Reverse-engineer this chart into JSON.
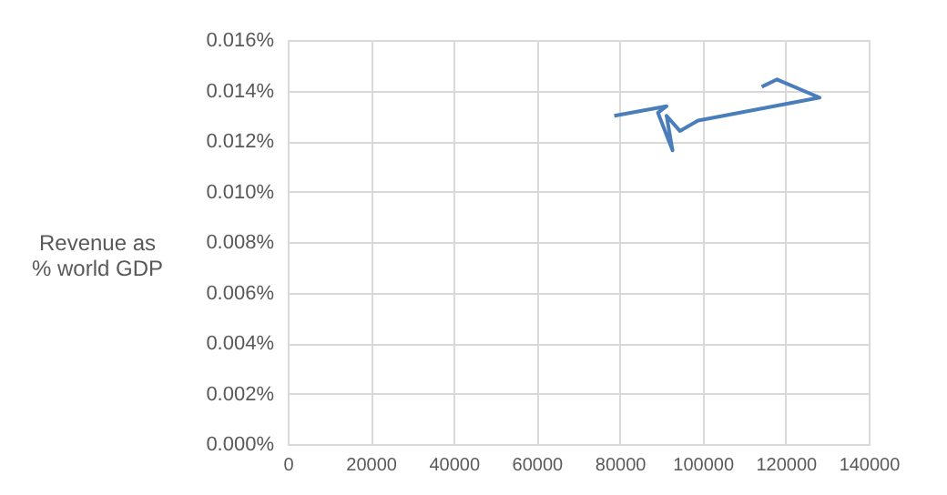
{
  "chart_data": {
    "type": "line",
    "ylabel": "Revenue as\n% world GDP",
    "x": [
      78690,
      91290,
      89220,
      92730,
      91290,
      94490,
      98880,
      128150,
      117920,
      114230
    ],
    "series": [
      {
        "color": "#4a7ebb",
        "values": [
          0.013,
          0.01338,
          0.01312,
          0.01163,
          0.013,
          0.0124,
          0.01281,
          0.01372,
          0.01444,
          0.01415
        ]
      }
    ],
    "xlim": [
      0,
      140000
    ],
    "xticks": [
      0,
      20000,
      40000,
      60000,
      80000,
      100000,
      120000,
      140000
    ],
    "ylim": [
      0,
      0.016
    ],
    "yticks": [
      {
        "value": 0,
        "label": "0.000%"
      },
      {
        "value": 0.002,
        "label": "0.002%"
      },
      {
        "value": 0.004,
        "label": "0.004%"
      },
      {
        "value": 0.006,
        "label": "0.006%"
      },
      {
        "value": 0.008,
        "label": "0.008%"
      },
      {
        "value": 0.01,
        "label": "0.010%"
      },
      {
        "value": 0.012,
        "label": "0.012%"
      },
      {
        "value": 0.014,
        "label": "0.014%"
      },
      {
        "value": 0.016,
        "label": "0.016%"
      }
    ],
    "grid": true,
    "legend": false,
    "marker": "none",
    "line_style": "solid"
  }
}
